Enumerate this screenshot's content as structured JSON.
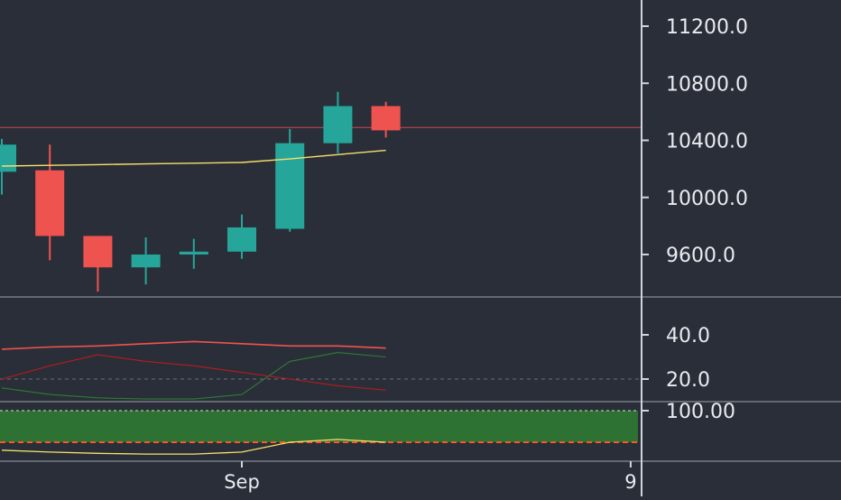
{
  "theme": {
    "background": "#2a2e39",
    "axis_line": "#d1d4dc",
    "text": "#e9ebf0",
    "up_color": "#26a69a",
    "down_color": "#ef5350",
    "ma_color": "#f7e06a",
    "price_line_color": "#ef5350",
    "adx_color": "#ef5350",
    "di_plus_color": "#2e7d32",
    "di_minus_color": "#b71c1c",
    "level_color": "#6b6f7a",
    "osc_color": "#f7e06a",
    "band_fill": "#2e7d32",
    "band_border": "#c8e6c9",
    "band_lower_color": "#ff5722"
  },
  "chart_data": [
    {
      "type": "candlestick",
      "pane": "price",
      "categories": [
        "c0",
        "c1",
        "c2",
        "c3",
        "c4",
        "c5",
        "c6",
        "c7",
        "c8"
      ],
      "candles": [
        {
          "open": 10180,
          "high": 10410,
          "low": 10020,
          "close": 10370
        },
        {
          "open": 10190,
          "high": 10370,
          "low": 9560,
          "close": 9730
        },
        {
          "open": 9730,
          "high": 9730,
          "low": 9340,
          "close": 9510
        },
        {
          "open": 9510,
          "high": 9720,
          "low": 9390,
          "close": 9600
        },
        {
          "open": 9600,
          "high": 9710,
          "low": 9500,
          "close": 9620
        },
        {
          "open": 9620,
          "high": 9880,
          "low": 9570,
          "close": 9790
        },
        {
          "open": 9780,
          "high": 10480,
          "low": 9760,
          "close": 10380
        },
        {
          "open": 10380,
          "high": 10740,
          "low": 10310,
          "close": 10640
        },
        {
          "open": 10640,
          "high": 10670,
          "low": 10420,
          "close": 10470
        }
      ],
      "moving_average": [
        10220,
        10225,
        10230,
        10235,
        10240,
        10245,
        10270,
        10300,
        10330
      ],
      "current_price": 10490,
      "y_ticks": [
        "11200.0",
        "10800.0",
        "10400.0",
        "10000.0",
        "9600.0"
      ],
      "ylim": [
        9200,
        11400
      ]
    },
    {
      "type": "line",
      "pane": "dmi",
      "series": [
        {
          "values": [
            33.5,
            34.5,
            35,
            36,
            37,
            36,
            35,
            35,
            34
          ]
        },
        {
          "values": [
            16,
            13,
            11.5,
            11,
            11,
            13,
            28,
            32,
            30
          ]
        },
        {
          "values": [
            20,
            26,
            31,
            28,
            26,
            23,
            20,
            17,
            15
          ]
        }
      ],
      "levels": [
        20
      ],
      "y_ticks": [
        "40.0",
        "20.0"
      ],
      "ylim": [
        8,
        47
      ]
    },
    {
      "type": "area",
      "pane": "oscillator",
      "band": [
        20,
        100
      ],
      "series": [
        {
          "values": [
            0,
            -5,
            -8,
            -10,
            -10,
            -5,
            20,
            27,
            20
          ]
        }
      ],
      "y_ticks": [
        "100.00"
      ],
      "ylim": [
        -25,
        110
      ]
    }
  ],
  "x_axis": {
    "labels": [
      {
        "text": "Sep",
        "category_index": 5
      },
      {
        "text": "9",
        "category_index": 13.1
      }
    ]
  }
}
